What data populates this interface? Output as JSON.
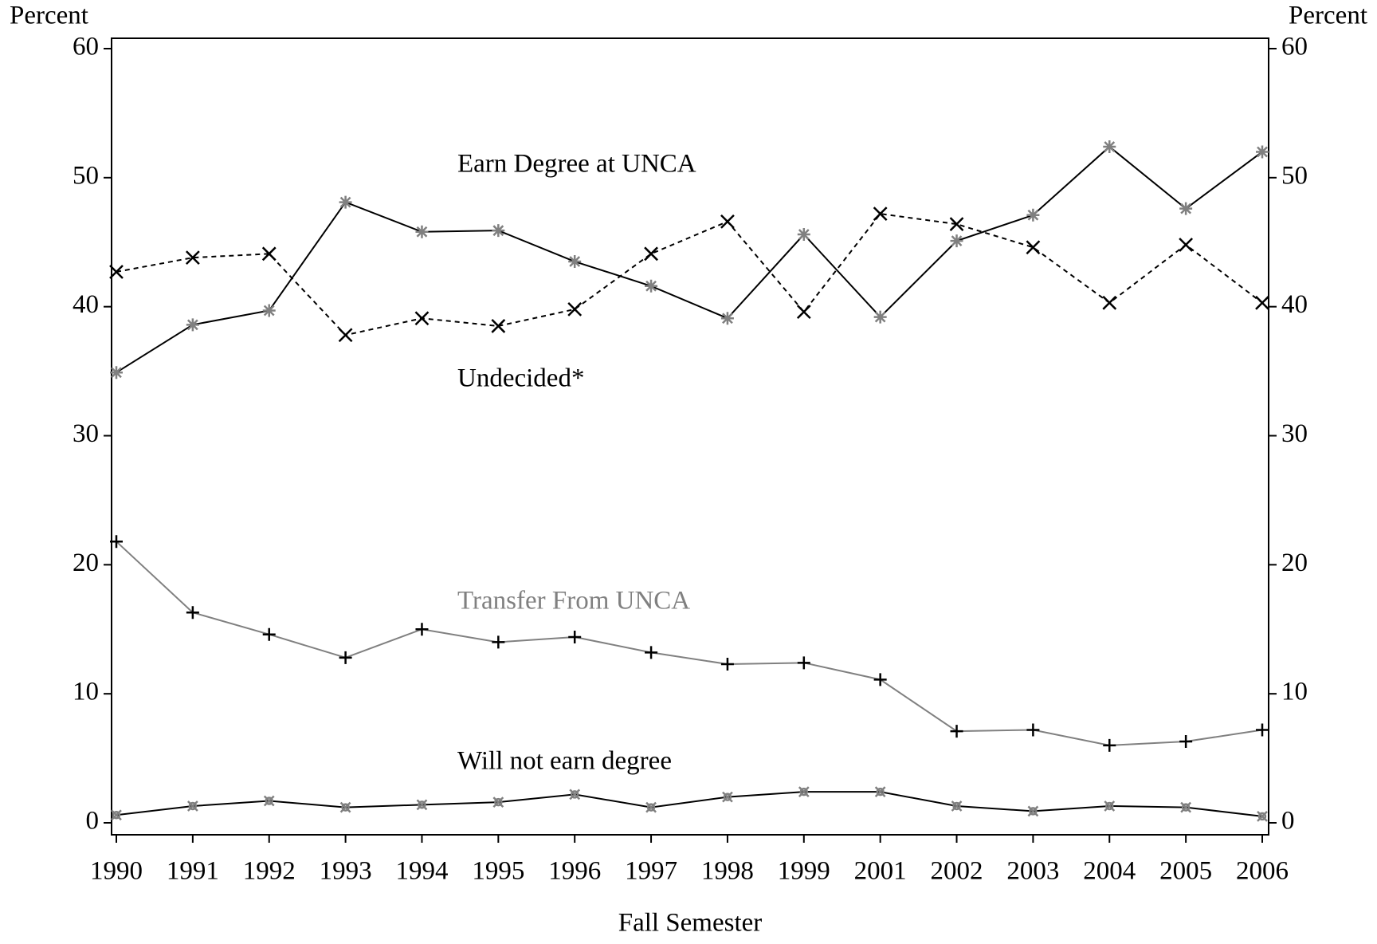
{
  "chart_data": {
    "type": "line",
    "y_label": "Percent",
    "y2_label": "Percent",
    "x_label": "Fall Semester",
    "categories": [
      "1990",
      "1991",
      "1992",
      "1993",
      "1994",
      "1995",
      "1996",
      "1997",
      "1998",
      "1999",
      "2001",
      "2002",
      "2003",
      "2004",
      "2005",
      "2006"
    ],
    "series": [
      {
        "name": "Earn Degree at UNCA",
        "color": "#000000",
        "marker_color": "#808080",
        "marker": "star",
        "dash": false,
        "values": [
          34.9,
          38.6,
          39.7,
          48.1,
          45.8,
          45.9,
          43.5,
          41.6,
          39.1,
          45.6,
          39.2,
          45.1,
          47.1,
          52.4,
          47.6,
          52.0
        ]
      },
      {
        "name": "Undecided*",
        "color": "#000000",
        "marker_color": "#000000",
        "marker": "x",
        "dash": true,
        "values": [
          42.7,
          43.8,
          44.1,
          37.8,
          39.1,
          38.5,
          39.8,
          44.1,
          46.6,
          39.6,
          47.2,
          46.4,
          44.6,
          40.3,
          44.8,
          40.3
        ]
      },
      {
        "name": "Transfer From UNCA",
        "color": "#808080",
        "marker_color": "#000000",
        "marker": "plus",
        "dash": false,
        "values": [
          21.8,
          16.3,
          14.6,
          12.8,
          15.0,
          14.0,
          14.4,
          13.2,
          12.3,
          12.4,
          11.1,
          7.1,
          7.2,
          6.0,
          6.3,
          7.2
        ]
      },
      {
        "name": "Will not earn degree",
        "color": "#000000",
        "marker_color": "#808080",
        "marker": "circle",
        "dash": false,
        "values": [
          0.6,
          1.3,
          1.7,
          1.2,
          1.4,
          1.6,
          2.2,
          1.2,
          2.0,
          2.4,
          2.4,
          1.3,
          0.9,
          1.3,
          1.2,
          0.5
        ]
      }
    ],
    "ylim": [
      0,
      60
    ],
    "yticks": [
      0,
      10,
      20,
      30,
      40,
      50,
      60
    ],
    "y2lim": [
      0,
      60
    ],
    "y2ticks": [
      0,
      10,
      20,
      30,
      40,
      50,
      60
    ],
    "grid": false
  }
}
